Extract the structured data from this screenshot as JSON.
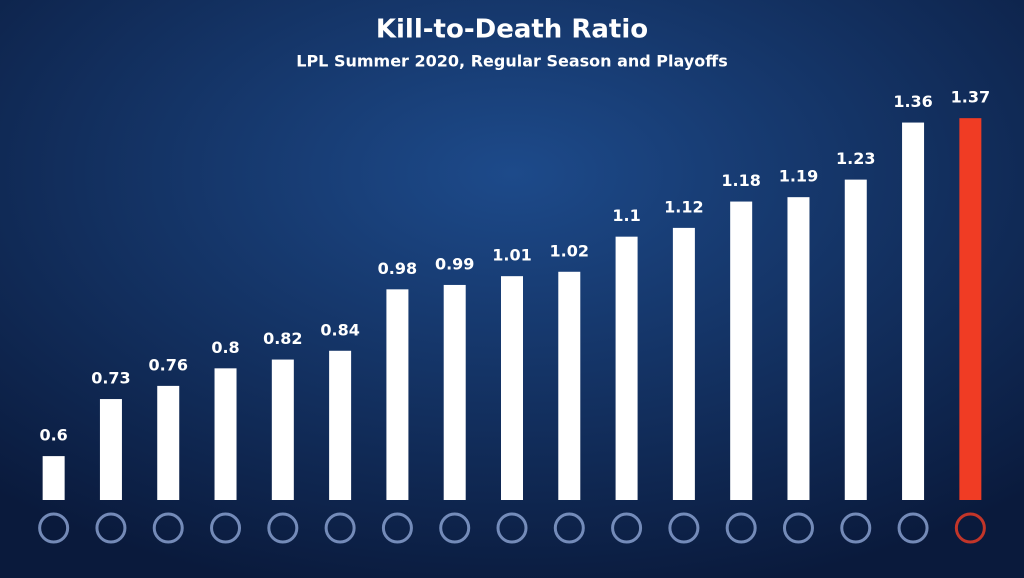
{
  "chart_data": {
    "type": "bar",
    "title": "Kill-to-Death Ratio",
    "subtitle": "LPL Summer 2020, Regular Season and Playoffs",
    "categories": [
      null,
      null,
      null,
      null,
      null,
      null,
      null,
      null,
      null,
      null,
      null,
      null,
      null,
      null,
      null,
      null,
      null
    ],
    "values": [
      0.6,
      0.73,
      0.76,
      0.8,
      0.82,
      0.84,
      0.98,
      0.99,
      1.01,
      1.02,
      1.1,
      1.12,
      1.18,
      1.19,
      1.23,
      1.36,
      1.37
    ],
    "colors": [
      "#ffffff",
      "#ffffff",
      "#ffffff",
      "#ffffff",
      "#ffffff",
      "#ffffff",
      "#ffffff",
      "#ffffff",
      "#ffffff",
      "#ffffff",
      "#ffffff",
      "#ffffff",
      "#ffffff",
      "#ffffff",
      "#ffffff",
      "#ffffff",
      "#f03c24"
    ],
    "ylim": [
      0.5,
      1.4
    ]
  }
}
